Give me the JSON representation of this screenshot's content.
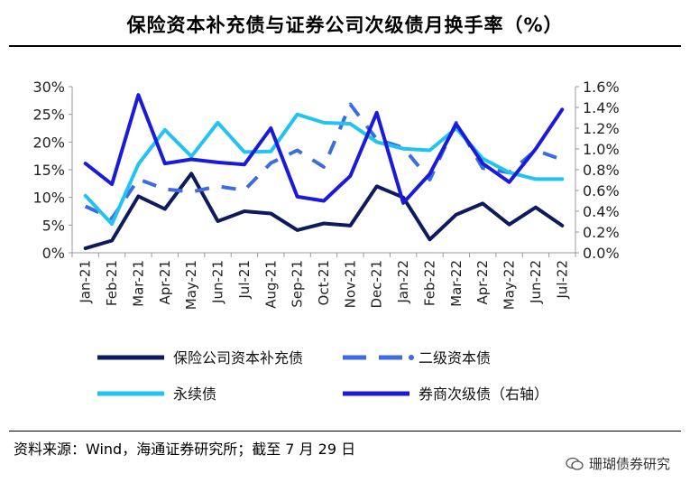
{
  "title": "保险资本补充债与证券公司次级债月换手率（%）",
  "source": "资料来源：Wind，海通证券研究所；截至 7 月 29 日",
  "watermark": "珊瑚债券研究",
  "chart_data": {
    "type": "line",
    "title": "保险资本补充债与证券公司次级债月换手率（%）",
    "categories": [
      "Jan-21",
      "Feb-21",
      "Mar-21",
      "Apr-21",
      "May-21",
      "Jun-21",
      "Jul-21",
      "Aug-21",
      "Sep-21",
      "Oct-21",
      "Nov-21",
      "Dec-21",
      "Jan-22",
      "Feb-22",
      "Mar-22",
      "Apr-22",
      "May-22",
      "Jun-22",
      "Jul-22"
    ],
    "y_left": {
      "range": [
        0,
        30
      ],
      "ticks": [
        "0%",
        "5%",
        "10%",
        "15%",
        "20%",
        "25%",
        "30%"
      ]
    },
    "y_right": {
      "range": [
        0,
        1.6
      ],
      "ticks": [
        "0.0%",
        "0.2%",
        "0.4%",
        "0.6%",
        "0.8%",
        "1.0%",
        "1.2%",
        "1.4%",
        "1.6%"
      ]
    },
    "grid": false,
    "legend_position": "bottom",
    "series": [
      {
        "name": "保险公司资本补充债",
        "axis": "left",
        "style": "solid",
        "color": "#0d1a5e",
        "values": [
          0.8,
          2.2,
          10.2,
          7.9,
          14.3,
          5.7,
          7.5,
          7.1,
          4.1,
          5.3,
          4.9,
          12.0,
          10.0,
          2.4,
          6.9,
          8.9,
          5.1,
          8.2,
          4.9
        ]
      },
      {
        "name": "二级资本债",
        "axis": "left",
        "style": "dashed",
        "color": "#3d6be0",
        "values": [
          8.4,
          6.2,
          13.3,
          11.5,
          11.0,
          12.0,
          11.3,
          16.2,
          18.5,
          15.5,
          26.8,
          20.5,
          19.0,
          13.2,
          23.5,
          15.3,
          14.5,
          18.5,
          16.8
        ]
      },
      {
        "name": "永续债",
        "axis": "left",
        "style": "solid",
        "color": "#22c3f0",
        "values": [
          10.3,
          5.2,
          16.0,
          22.2,
          17.4,
          23.5,
          18.2,
          18.3,
          25.0,
          23.5,
          23.3,
          20.0,
          18.8,
          18.5,
          22.5,
          17.0,
          14.5,
          13.3,
          13.3
        ]
      },
      {
        "name": "券商次级债（右轴）",
        "axis": "right",
        "style": "solid",
        "color": "#1a1adb",
        "values": [
          0.86,
          0.66,
          1.52,
          0.86,
          0.9,
          0.87,
          0.85,
          1.2,
          0.54,
          0.5,
          0.74,
          1.35,
          0.48,
          0.76,
          1.24,
          0.86,
          0.68,
          1.0,
          1.38
        ]
      }
    ]
  }
}
